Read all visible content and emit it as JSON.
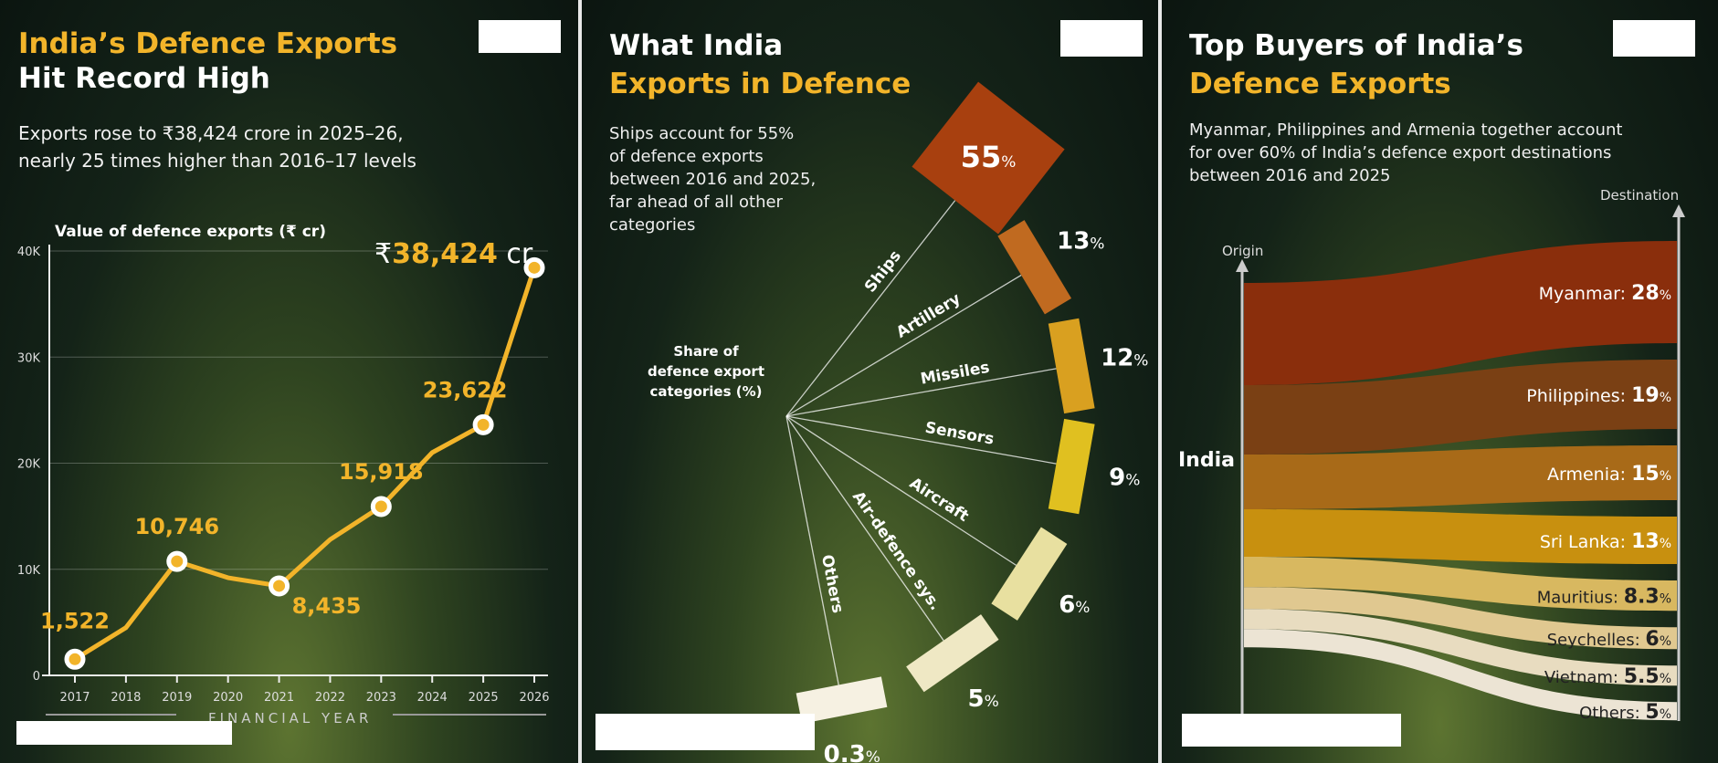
{
  "panel1": {
    "title_line1": "India’s Defence Exports",
    "title_line2": "Hit Record High",
    "subtitle_line1": "Exports rose to ₹38,424 crore in 2025–26,",
    "subtitle_line2": "nearly 25 times higher than 2016–17 levels"
  },
  "panel2": {
    "title_line1": "What India",
    "title_line2": "Exports in Defence",
    "desc": [
      "Ships account for 55%",
      "of defence exports",
      "between 2016 and 2025,",
      "far ahead of all other",
      "categories"
    ],
    "center_label": [
      "Share of",
      "defence export",
      "categories (%)"
    ]
  },
  "panel3": {
    "title_line1": "Top Buyers of India’s",
    "title_line2": "Defence Exports",
    "desc": [
      "Myanmar, Philippines and Armenia together account",
      "for over 60% of India’s defence export destinations",
      "between 2016 and 2025"
    ],
    "origin_label": "Origin",
    "destination_label": "Destination",
    "origin_name": "India"
  },
  "chart_data": [
    {
      "type": "line",
      "title": "Value of defence exports (₹ cr)",
      "xlabel": "FINANCIAL YEAR",
      "x": [
        2017,
        2018,
        2019,
        2020,
        2021,
        2022,
        2023,
        2024,
        2025,
        2026
      ],
      "values": [
        1522,
        4500,
        10746,
        9200,
        8435,
        12800,
        15918,
        21000,
        23622,
        38424
      ],
      "data_labels": {
        "2017": "1,522",
        "2019": "10,746",
        "2021": "8,435",
        "2023": "15,918",
        "2025": "23,622"
      },
      "highlight": {
        "prefix": "₹",
        "value": "38,424",
        "suffix": "cr"
      },
      "yticks": [
        "0",
        "10K",
        "20K",
        "30K",
        "40K"
      ],
      "ylim": [
        0,
        40000
      ],
      "grid": true,
      "color": "#f2b42a"
    },
    {
      "type": "radial-bar",
      "categories": [
        "Ships",
        "Artillery",
        "Missiles",
        "Sensors",
        "Aircraft",
        "Air-defence sys.",
        "Others"
      ],
      "values": [
        55,
        13,
        12,
        9,
        6,
        5,
        0.3
      ],
      "colors": [
        "#a8400f",
        "#c06a20",
        "#d9a020",
        "#e0c020",
        "#e8e0a0",
        "#efe8c4",
        "#f6f1e2"
      ]
    },
    {
      "type": "sankey",
      "source": "India",
      "categories": [
        "Myanmar",
        "Philippines",
        "Armenia",
        "Sri Lanka",
        "Mauritius",
        "Seychelles",
        "Vietnam",
        "Others"
      ],
      "values": [
        28,
        19,
        15,
        13,
        8.3,
        6,
        5.5,
        5
      ],
      "colors": [
        "#8a2e0c",
        "#7a4014",
        "#a86a18",
        "#c8900f",
        "#d8b860",
        "#e0c890",
        "#e8dcc0",
        "#ece4d4"
      ]
    }
  ]
}
